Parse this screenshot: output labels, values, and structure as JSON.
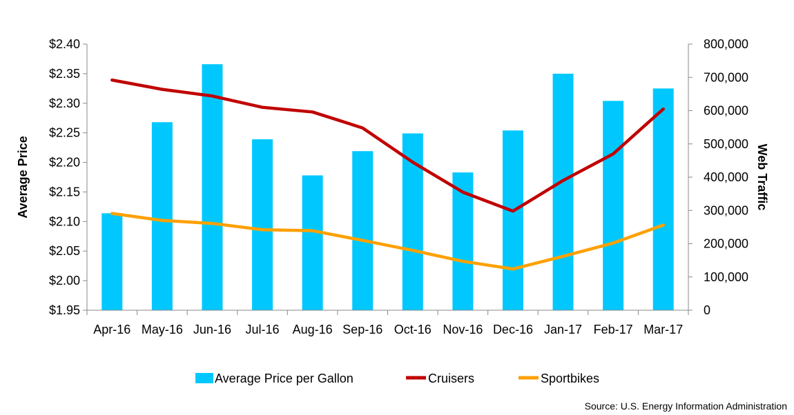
{
  "chart_data": {
    "type": "bar+line",
    "categories": [
      "Apr-16",
      "May-16",
      "Jun-16",
      "Jul-16",
      "Aug-16",
      "Sep-16",
      "Oct-16",
      "Nov-16",
      "Dec-16",
      "Jan-17",
      "Feb-17",
      "Mar-17"
    ],
    "bar_series": {
      "name": "Average Price per Gallon",
      "axis": "left",
      "color": "#00C8FF",
      "values": [
        2.114,
        2.268,
        2.366,
        2.239,
        2.178,
        2.219,
        2.249,
        2.183,
        2.254,
        2.35,
        2.304,
        2.325
      ]
    },
    "line_series": [
      {
        "name": "Cruisers",
        "axis": "right",
        "color": "#C00000",
        "values": [
          692000,
          664000,
          644000,
          610000,
          596000,
          548000,
          445000,
          355000,
          298000,
          390000,
          470000,
          605000
        ]
      },
      {
        "name": "Sportbikes",
        "axis": "right",
        "color": "#FFA000",
        "values": [
          291000,
          270000,
          261000,
          242000,
          239000,
          210000,
          180000,
          147000,
          124000,
          162000,
          202000,
          256000
        ]
      }
    ],
    "left_axis": {
      "label": "Average Price",
      "min": 1.95,
      "max": 2.4,
      "step": 0.05,
      "ticks": [
        "$1.95",
        "$2.00",
        "$2.05",
        "$2.10",
        "$2.15",
        "$2.20",
        "$2.25",
        "$2.30",
        "$2.35",
        "$2.40"
      ]
    },
    "right_axis": {
      "label": "Web Traffic",
      "min": 0,
      "max": 800000,
      "step": 100000,
      "ticks": [
        "0",
        "100,000",
        "200,000",
        "300,000",
        "400,000",
        "500,000",
        "600,000",
        "700,000",
        "800,000"
      ]
    },
    "legend": {
      "position": "bottom",
      "items": [
        {
          "label": "Average Price per Gallon",
          "type": "bar",
          "color": "#00C8FF"
        },
        {
          "label": "Cruisers",
          "type": "line",
          "color": "#C00000"
        },
        {
          "label": "Sportbikes",
          "type": "line",
          "color": "#FFA000"
        }
      ]
    },
    "source": "Source: U.S. Energy Information Administration",
    "grid": false
  }
}
